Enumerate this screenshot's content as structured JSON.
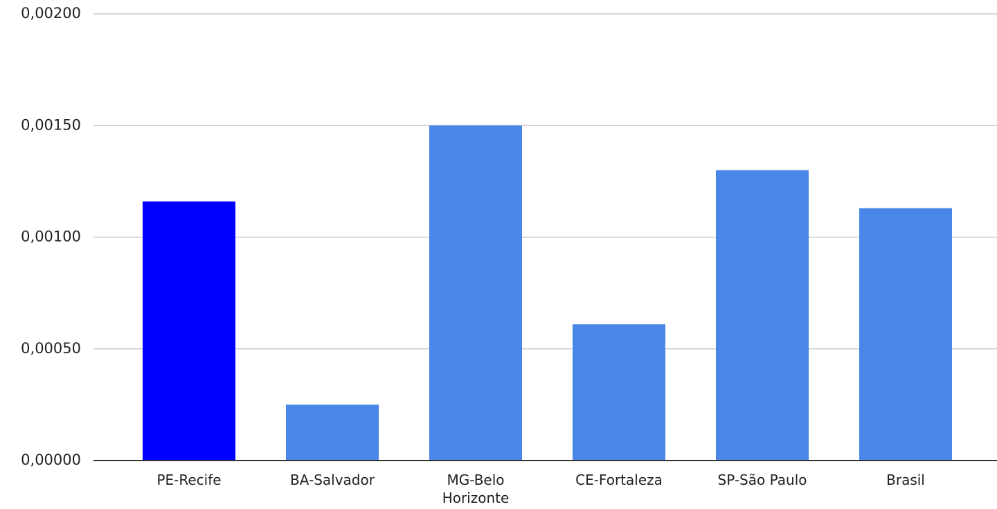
{
  "chart_data": {
    "type": "bar",
    "categories": [
      "PE-Recife",
      "BA-Salvador",
      "MG-Belo Horizonte",
      "CE-Fortaleza",
      "SP-São Paulo",
      "Brasil"
    ],
    "values": [
      0.00116,
      0.00025,
      0.0015,
      0.00061,
      0.0013,
      0.00113
    ],
    "colors": [
      "#0000ff",
      "#4a86e8",
      "#4a86e8",
      "#4a86e8",
      "#4a86e8",
      "#4a86e8"
    ],
    "ylim": [
      0,
      0.002
    ],
    "yticks": [
      {
        "value": 0,
        "label": "0,00000"
      },
      {
        "value": 0.0005,
        "label": "0,00050"
      },
      {
        "value": 0.001,
        "label": "0,00100"
      },
      {
        "value": 0.0015,
        "label": "0,00150"
      },
      {
        "value": 0.002,
        "label": "0,00200"
      }
    ],
    "grid": true
  }
}
